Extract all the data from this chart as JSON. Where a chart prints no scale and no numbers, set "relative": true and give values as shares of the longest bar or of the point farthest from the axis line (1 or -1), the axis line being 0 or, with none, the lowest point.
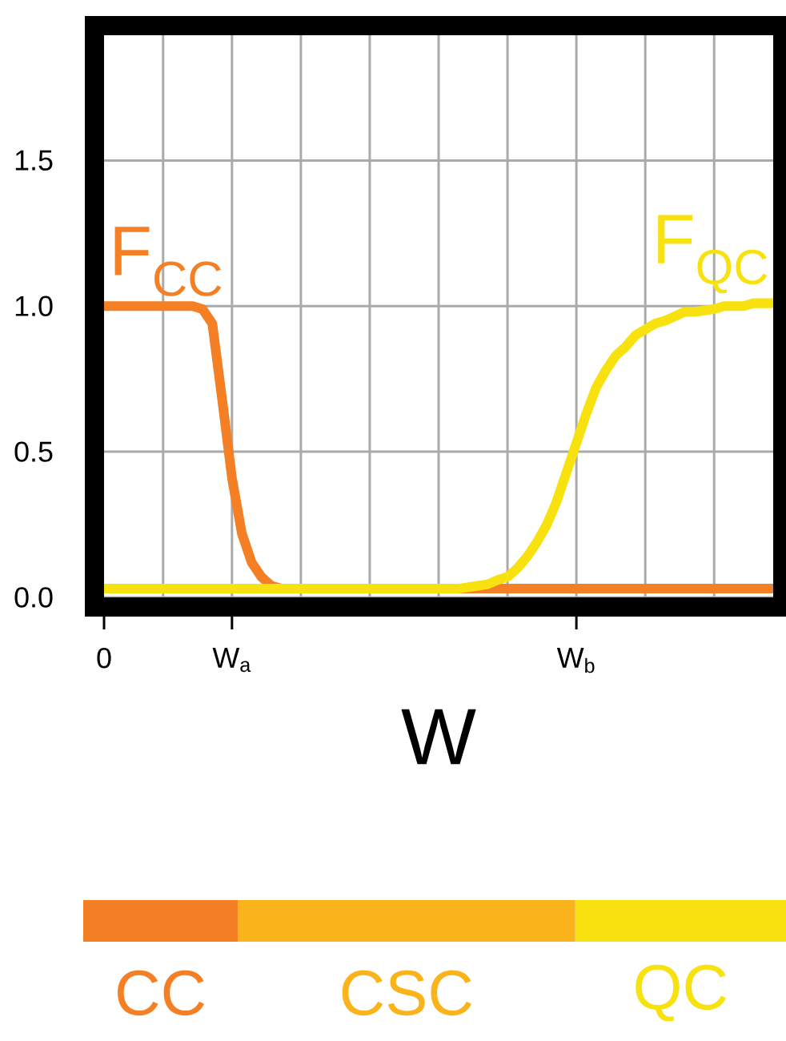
{
  "chart_data": [
    {
      "type": "line",
      "xlabel": "W",
      "categories": [
        "0",
        null,
        null,
        null,
        null,
        null,
        null,
        null,
        null,
        null,
        null,
        null,
        null,
        "W$_{a}$",
        null,
        null,
        null,
        null,
        null,
        null,
        null,
        null,
        null,
        null,
        null,
        null,
        null,
        null,
        null,
        null,
        null,
        null,
        null,
        null,
        null,
        null,
        null,
        null,
        null,
        null,
        null,
        null,
        null,
        null,
        null,
        null,
        null,
        null,
        "W$_{b}$",
        null,
        null,
        null,
        null,
        null,
        null,
        null,
        null,
        null,
        null,
        null,
        null,
        null,
        null,
        null,
        null,
        null,
        null,
        null,
        null
      ],
      "ylim": [
        0,
        1.93
      ],
      "yticks": [
        {
          "value": 0,
          "label": "0.0"
        },
        {
          "value": 0.5,
          "label": "0.5"
        },
        {
          "value": 1.0,
          "label": "1.0"
        },
        {
          "value": 1.5,
          "label": "1.5"
        }
      ],
      "grid": true,
      "legend": false,
      "series": [
        {
          "name": "F$_{CC}$",
          "color": "#f47f24",
          "values": [
            1.0,
            1.0,
            1.0,
            1.0,
            1.0,
            1.0,
            1.0,
            1.0,
            1.0,
            1.0,
            0.99,
            0.94,
            0.68,
            0.41,
            0.22,
            0.12,
            0.07,
            0.04,
            0.03,
            0.03,
            0.03,
            0.03,
            0.03,
            0.03,
            0.03,
            0.03,
            0.03,
            0.03,
            0.03,
            0.03,
            0.03,
            0.03,
            0.03,
            0.03,
            0.03,
            0.03,
            0.03,
            0.03,
            0.03,
            0.03,
            0.03,
            0.03,
            0.03,
            0.03,
            0.03,
            0.03,
            0.03,
            0.03,
            0.03,
            0.03,
            0.03,
            0.03,
            0.03,
            0.03,
            0.03,
            0.03,
            0.03,
            0.03,
            0.03,
            0.03,
            0.03,
            0.03,
            0.03,
            0.03,
            0.03,
            0.03,
            0.03,
            0.03,
            0.03
          ]
        },
        {
          "name": "F$_{QC}$",
          "color": "#f7e20f",
          "values": [
            0.03,
            0.03,
            0.03,
            0.03,
            0.03,
            0.03,
            0.03,
            0.03,
            0.03,
            0.03,
            0.03,
            0.03,
            0.03,
            0.03,
            0.03,
            0.03,
            0.03,
            0.03,
            0.03,
            0.03,
            0.03,
            0.03,
            0.03,
            0.03,
            0.03,
            0.03,
            0.03,
            0.03,
            0.03,
            0.03,
            0.03,
            0.03,
            0.03,
            0.03,
            0.03,
            0.03,
            0.03,
            0.035,
            0.04,
            0.045,
            0.06,
            0.07,
            0.1,
            0.14,
            0.19,
            0.25,
            0.33,
            0.43,
            0.53,
            0.63,
            0.72,
            0.78,
            0.83,
            0.86,
            0.9,
            0.92,
            0.94,
            0.95,
            0.965,
            0.98,
            0.98,
            0.985,
            0.99,
            1.0,
            1.0,
            1.0,
            1.01,
            1.01,
            1.01
          ]
        }
      ]
    },
    {
      "type": "bar",
      "orientation": "horizontal",
      "stacked": true,
      "relative": true,
      "legend": false,
      "categories": [
        null
      ],
      "series": [
        {
          "name": "CC",
          "color": "#f47f24",
          "values": [
            0.22
          ]
        },
        {
          "name": "CSC",
          "color": "#fbb31b",
          "values": [
            0.48
          ]
        },
        {
          "name": "QC",
          "color": "#f7e20f",
          "values": [
            0.3
          ]
        }
      ]
    }
  ]
}
